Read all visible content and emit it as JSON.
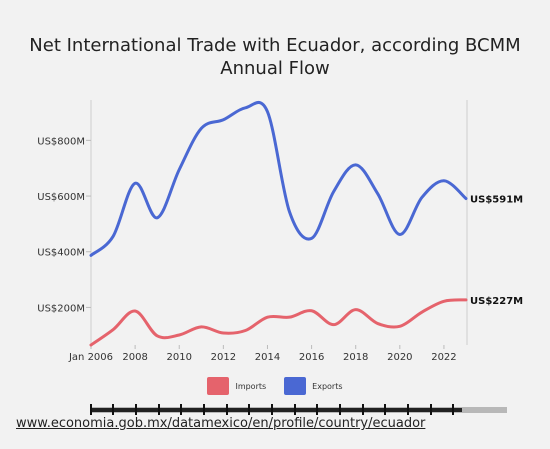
{
  "title_line1": "Net International Trade with Ecuador, according BCMM",
  "title_line2": "Annual Flow",
  "source_link": "www.economia.gob.mx/datamexico/en/profile/country/ecuador",
  "colors": {
    "imports": "#e5636c",
    "exports": "#4a68d3",
    "background": "#f2f2f2"
  },
  "chart_data": {
    "type": "line",
    "title": "Net International Trade with Ecuador, according BCMM",
    "subtitle": "Annual Flow",
    "x_tick_labels": [
      "Jan 2006",
      "2008",
      "2010",
      "2012",
      "2014",
      "2016",
      "2018",
      "2020",
      "2022"
    ],
    "y_tick_labels": [
      "US$200M",
      "US$400M",
      "US$600M",
      "US$800M"
    ],
    "ylim": [
      65,
      945
    ],
    "xlim": [
      2006,
      2023
    ],
    "grid": false,
    "legend_position": "bottom",
    "series": [
      {
        "name": "Imports",
        "color": "#e5636c",
        "end_label": "US$227M",
        "x": [
          2006,
          2007,
          2008,
          2009,
          2010,
          2011,
          2012,
          2013,
          2014,
          2015,
          2016,
          2017,
          2018,
          2019,
          2020,
          2021,
          2022,
          2023
        ],
        "values": [
          65,
          120,
          187,
          98,
          101,
          130,
          108,
          117,
          165,
          165,
          188,
          138,
          192,
          142,
          132,
          183,
          222,
          227
        ]
      },
      {
        "name": "Exports",
        "color": "#4a68d3",
        "end_label": "US$591M",
        "x": [
          2006,
          2007,
          2008,
          2009,
          2010,
          2011,
          2012,
          2013,
          2014,
          2015,
          2016,
          2017,
          2018,
          2019,
          2020,
          2021,
          2022,
          2023
        ],
        "values": [
          387,
          455,
          646,
          522,
          695,
          843,
          874,
          917,
          903,
          543,
          448,
          616,
          712,
          608,
          462,
          595,
          655,
          591
        ]
      }
    ]
  },
  "legend": {
    "items": [
      {
        "label": "Imports",
        "color": "#e5636c"
      },
      {
        "label": "Exports",
        "color": "#4a68d3"
      }
    ]
  }
}
